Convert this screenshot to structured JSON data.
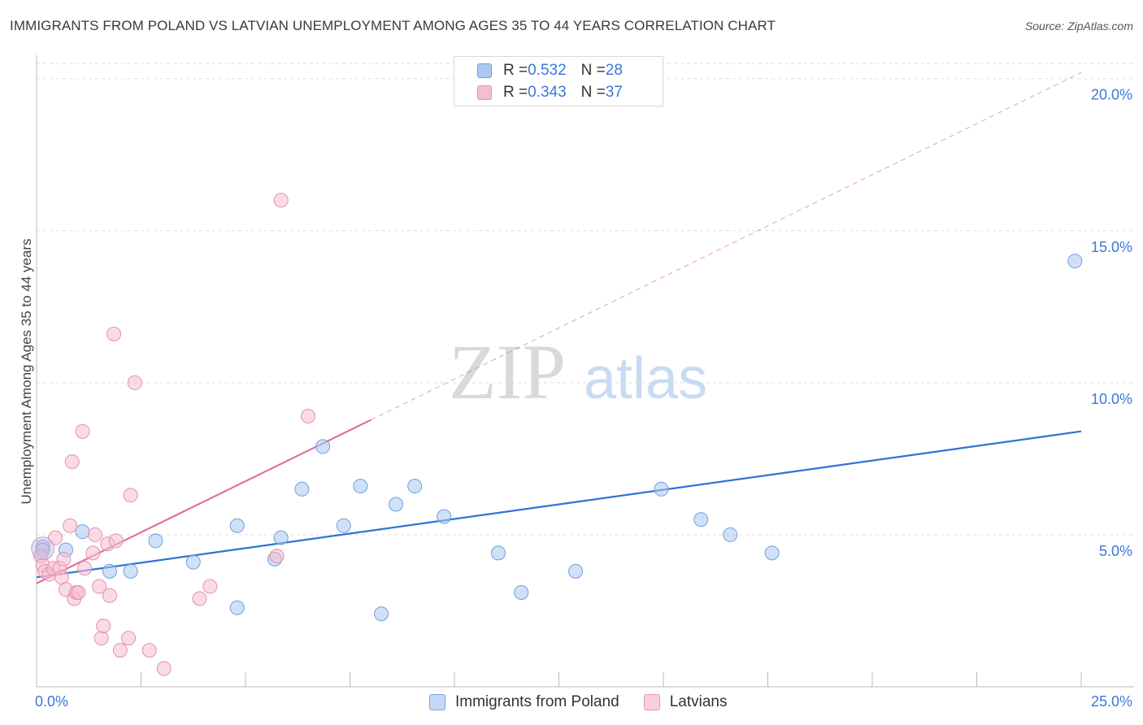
{
  "header": {
    "title": "IMMIGRANTS FROM POLAND VS LATVIAN UNEMPLOYMENT AMONG AGES 35 TO 44 YEARS CORRELATION CHART",
    "source": "Source: ZipAtlas.com"
  },
  "watermark": {
    "zip": "ZIP",
    "atlas": "atlas"
  },
  "legend": {
    "rows": [
      {
        "r_label": "R = ",
        "r_value": "0.532",
        "n_label": "N = ",
        "n_value": "28"
      },
      {
        "r_label": "R = ",
        "r_value": "0.343",
        "n_label": "N = ",
        "n_value": "37"
      }
    ]
  },
  "bottom_legend": {
    "items": [
      {
        "label": "Immigrants from Poland"
      },
      {
        "label": "Latvians"
      }
    ]
  },
  "colors": {
    "blue_fill": "#aac8f0",
    "blue_stroke": "#6f9fdc",
    "blue_line": "#2f72d6",
    "pink_fill": "#f6bdd0",
    "pink_stroke": "#e58fae",
    "pink_line": "#e07097",
    "axis_label": "#3b78d8",
    "grid": "#dddddd"
  },
  "chart_data": {
    "type": "scatter",
    "title": "IMMIGRANTS FROM POLAND VS LATVIAN UNEMPLOYMENT AMONG AGES 35 TO 44 YEARS CORRELATION CHART",
    "xlabel": "",
    "ylabel": "Unemployment Among Ages 35 to 44 years",
    "xlim": [
      0,
      25
    ],
    "ylim": [
      0,
      20.5
    ],
    "x_tick_labels": [
      {
        "value": 0,
        "label": "0.0%"
      },
      {
        "value": 25,
        "label": "25.0%"
      }
    ],
    "y_tick_labels": [
      {
        "value": 5,
        "label": "5.0%"
      },
      {
        "value": 10,
        "label": "10.0%"
      },
      {
        "value": 15,
        "label": "15.0%"
      },
      {
        "value": 20,
        "label": "20.0%"
      }
    ],
    "grid": true,
    "series": [
      {
        "name": "Immigrants from Poland",
        "color": "blue",
        "r": 0.532,
        "n": 28,
        "points": [
          [
            0.15,
            4.6
          ],
          [
            0.7,
            4.5
          ],
          [
            1.1,
            5.1
          ],
          [
            1.75,
            3.8
          ],
          [
            2.25,
            3.8
          ],
          [
            2.85,
            4.8
          ],
          [
            3.75,
            4.1
          ],
          [
            4.8,
            5.3
          ],
          [
            4.8,
            2.6
          ],
          [
            5.7,
            4.2
          ],
          [
            5.85,
            4.9
          ],
          [
            6.35,
            6.5
          ],
          [
            6.85,
            7.9
          ],
          [
            7.35,
            5.3
          ],
          [
            7.75,
            6.6
          ],
          [
            8.25,
            2.4
          ],
          [
            8.6,
            6.0
          ],
          [
            9.05,
            6.6
          ],
          [
            9.75,
            5.6
          ],
          [
            11.05,
            4.4
          ],
          [
            11.6,
            3.1
          ],
          [
            12.9,
            3.8
          ],
          [
            14.95,
            6.5
          ],
          [
            15.9,
            5.5
          ],
          [
            16.6,
            5.0
          ],
          [
            17.6,
            4.4
          ],
          [
            24.85,
            14.0
          ],
          [
            0.15,
            4.5
          ]
        ],
        "trend": {
          "x": [
            0,
            25
          ],
          "y": [
            3.6,
            8.4
          ],
          "solid_until_x": 25
        }
      },
      {
        "name": "Latvians",
        "color": "pink",
        "r": 0.343,
        "n": 37,
        "points": [
          [
            0.1,
            4.3
          ],
          [
            0.15,
            4.0
          ],
          [
            0.2,
            3.8
          ],
          [
            0.3,
            3.7
          ],
          [
            0.4,
            3.9
          ],
          [
            0.45,
            4.9
          ],
          [
            0.55,
            3.9
          ],
          [
            0.6,
            3.6
          ],
          [
            0.65,
            4.2
          ],
          [
            0.7,
            3.2
          ],
          [
            0.8,
            5.3
          ],
          [
            0.85,
            7.4
          ],
          [
            0.9,
            2.9
          ],
          [
            0.95,
            3.1
          ],
          [
            1.0,
            3.1
          ],
          [
            1.1,
            8.4
          ],
          [
            1.15,
            3.9
          ],
          [
            1.35,
            4.4
          ],
          [
            1.4,
            5.0
          ],
          [
            1.5,
            3.3
          ],
          [
            1.55,
            1.6
          ],
          [
            1.6,
            2.0
          ],
          [
            1.7,
            4.7
          ],
          [
            1.75,
            3.0
          ],
          [
            1.85,
            11.6
          ],
          [
            1.9,
            4.8
          ],
          [
            2.0,
            1.2
          ],
          [
            2.2,
            1.6
          ],
          [
            2.25,
            6.3
          ],
          [
            2.35,
            10.0
          ],
          [
            2.7,
            1.2
          ],
          [
            3.05,
            0.6
          ],
          [
            3.9,
            2.9
          ],
          [
            4.15,
            3.3
          ],
          [
            5.75,
            4.3
          ],
          [
            5.85,
            16.0
          ],
          [
            6.5,
            8.9
          ]
        ],
        "trend": {
          "x": [
            0,
            25
          ],
          "y": [
            3.4,
            20.2
          ],
          "solid_until_x": 8.0
        }
      }
    ]
  }
}
